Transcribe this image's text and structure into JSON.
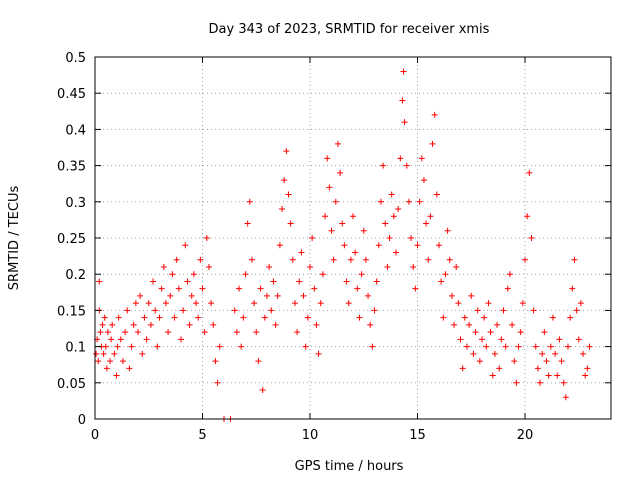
{
  "chart_data": {
    "type": "scatter",
    "title": "Day 343 of 2023, SRMTID for receiver xmis",
    "xlabel": "GPS time / hours",
    "ylabel": "SRMTID / TECUs",
    "xlim": [
      0,
      24
    ],
    "ylim": [
      0,
      0.5
    ],
    "xticks": [
      0,
      5,
      10,
      15,
      20
    ],
    "xtick_labels": [
      "0",
      "5",
      "10",
      "15",
      "20"
    ],
    "yticks": [
      0,
      0.05,
      0.1,
      0.15,
      0.2,
      0.25,
      0.3,
      0.35,
      0.4,
      0.45,
      0.5
    ],
    "ytick_labels": [
      "0",
      "0.05",
      "0.1",
      "0.15",
      "0.2",
      "0.25",
      "0.3",
      "0.35",
      "0.4",
      "0.45",
      "0.5"
    ],
    "grid": true,
    "marker": "+",
    "color": "#ff0000",
    "series": [
      {
        "name": "SRMTID",
        "points": [
          [
            0.05,
            0.09
          ],
          [
            0.1,
            0.11
          ],
          [
            0.15,
            0.08
          ],
          [
            0.2,
            0.19
          ],
          [
            0.2,
            0.15
          ],
          [
            0.25,
            0.12
          ],
          [
            0.3,
            0.1
          ],
          [
            0.35,
            0.13
          ],
          [
            0.4,
            0.09
          ],
          [
            0.45,
            0.14
          ],
          [
            0.5,
            0.1
          ],
          [
            0.55,
            0.07
          ],
          [
            0.6,
            0.12
          ],
          [
            0.7,
            0.08
          ],
          [
            0.75,
            0.11
          ],
          [
            0.8,
            0.13
          ],
          [
            0.9,
            0.09
          ],
          [
            1.0,
            0.06
          ],
          [
            1.05,
            0.1
          ],
          [
            1.1,
            0.14
          ],
          [
            1.2,
            0.11
          ],
          [
            1.3,
            0.08
          ],
          [
            1.4,
            0.12
          ],
          [
            1.5,
            0.15
          ],
          [
            1.6,
            0.07
          ],
          [
            1.7,
            0.1
          ],
          [
            1.8,
            0.13
          ],
          [
            1.9,
            0.16
          ],
          [
            2.0,
            0.12
          ],
          [
            2.1,
            0.17
          ],
          [
            2.2,
            0.09
          ],
          [
            2.3,
            0.14
          ],
          [
            2.4,
            0.11
          ],
          [
            2.5,
            0.16
          ],
          [
            2.6,
            0.13
          ],
          [
            2.7,
            0.19
          ],
          [
            2.8,
            0.15
          ],
          [
            2.9,
            0.1
          ],
          [
            3.0,
            0.14
          ],
          [
            3.1,
            0.18
          ],
          [
            3.2,
            0.21
          ],
          [
            3.3,
            0.16
          ],
          [
            3.4,
            0.12
          ],
          [
            3.5,
            0.17
          ],
          [
            3.6,
            0.2
          ],
          [
            3.7,
            0.14
          ],
          [
            3.8,
            0.22
          ],
          [
            3.9,
            0.18
          ],
          [
            4.0,
            0.11
          ],
          [
            4.1,
            0.15
          ],
          [
            4.2,
            0.24
          ],
          [
            4.3,
            0.19
          ],
          [
            4.4,
            0.13
          ],
          [
            4.5,
            0.17
          ],
          [
            4.6,
            0.2
          ],
          [
            4.7,
            0.16
          ],
          [
            4.8,
            0.14
          ],
          [
            4.9,
            0.22
          ],
          [
            5.0,
            0.18
          ],
          [
            5.1,
            0.12
          ],
          [
            5.2,
            0.25
          ],
          [
            5.3,
            0.21
          ],
          [
            5.4,
            0.16
          ],
          [
            5.5,
            0.13
          ],
          [
            5.6,
            0.08
          ],
          [
            5.7,
            0.05
          ],
          [
            5.8,
            0.1
          ],
          [
            6.0,
            0.0
          ],
          [
            6.3,
            0.0
          ],
          [
            6.5,
            0.15
          ],
          [
            6.6,
            0.12
          ],
          [
            6.7,
            0.18
          ],
          [
            6.8,
            0.1
          ],
          [
            6.9,
            0.14
          ],
          [
            7.0,
            0.2
          ],
          [
            7.1,
            0.27
          ],
          [
            7.2,
            0.3
          ],
          [
            7.3,
            0.22
          ],
          [
            7.4,
            0.16
          ],
          [
            7.5,
            0.12
          ],
          [
            7.6,
            0.08
          ],
          [
            7.7,
            0.18
          ],
          [
            7.8,
            0.04
          ],
          [
            7.9,
            0.14
          ],
          [
            8.0,
            0.17
          ],
          [
            8.1,
            0.21
          ],
          [
            8.2,
            0.15
          ],
          [
            8.3,
            0.19
          ],
          [
            8.4,
            0.13
          ],
          [
            8.5,
            0.17
          ],
          [
            8.6,
            0.24
          ],
          [
            8.7,
            0.29
          ],
          [
            8.8,
            0.33
          ],
          [
            8.9,
            0.37
          ],
          [
            9.0,
            0.31
          ],
          [
            9.1,
            0.27
          ],
          [
            9.2,
            0.22
          ],
          [
            9.3,
            0.16
          ],
          [
            9.4,
            0.12
          ],
          [
            9.5,
            0.19
          ],
          [
            9.6,
            0.23
          ],
          [
            9.7,
            0.17
          ],
          [
            9.8,
            0.1
          ],
          [
            9.9,
            0.14
          ],
          [
            10.0,
            0.21
          ],
          [
            10.1,
            0.25
          ],
          [
            10.2,
            0.18
          ],
          [
            10.3,
            0.13
          ],
          [
            10.4,
            0.09
          ],
          [
            10.5,
            0.16
          ],
          [
            10.6,
            0.2
          ],
          [
            10.7,
            0.28
          ],
          [
            10.8,
            0.36
          ],
          [
            10.9,
            0.32
          ],
          [
            11.0,
            0.26
          ],
          [
            11.1,
            0.22
          ],
          [
            11.2,
            0.3
          ],
          [
            11.3,
            0.38
          ],
          [
            11.4,
            0.34
          ],
          [
            11.5,
            0.27
          ],
          [
            11.6,
            0.24
          ],
          [
            11.7,
            0.19
          ],
          [
            11.8,
            0.16
          ],
          [
            11.9,
            0.22
          ],
          [
            12.0,
            0.28
          ],
          [
            12.1,
            0.23
          ],
          [
            12.2,
            0.18
          ],
          [
            12.3,
            0.14
          ],
          [
            12.4,
            0.2
          ],
          [
            12.5,
            0.26
          ],
          [
            12.6,
            0.22
          ],
          [
            12.7,
            0.17
          ],
          [
            12.8,
            0.13
          ],
          [
            12.9,
            0.1
          ],
          [
            13.0,
            0.15
          ],
          [
            13.1,
            0.19
          ],
          [
            13.2,
            0.24
          ],
          [
            13.3,
            0.3
          ],
          [
            13.4,
            0.35
          ],
          [
            13.5,
            0.27
          ],
          [
            13.6,
            0.21
          ],
          [
            13.7,
            0.25
          ],
          [
            13.8,
            0.31
          ],
          [
            13.9,
            0.28
          ],
          [
            14.0,
            0.23
          ],
          [
            14.1,
            0.29
          ],
          [
            14.2,
            0.36
          ],
          [
            14.3,
            0.44
          ],
          [
            14.35,
            0.48
          ],
          [
            14.4,
            0.41
          ],
          [
            14.5,
            0.35
          ],
          [
            14.6,
            0.3
          ],
          [
            14.7,
            0.25
          ],
          [
            14.8,
            0.21
          ],
          [
            14.9,
            0.18
          ],
          [
            15.0,
            0.24
          ],
          [
            15.1,
            0.3
          ],
          [
            15.2,
            0.36
          ],
          [
            15.3,
            0.33
          ],
          [
            15.4,
            0.27
          ],
          [
            15.5,
            0.22
          ],
          [
            15.6,
            0.28
          ],
          [
            15.7,
            0.38
          ],
          [
            15.8,
            0.42
          ],
          [
            15.9,
            0.31
          ],
          [
            16.0,
            0.24
          ],
          [
            16.1,
            0.19
          ],
          [
            16.2,
            0.14
          ],
          [
            16.3,
            0.2
          ],
          [
            16.4,
            0.26
          ],
          [
            16.5,
            0.22
          ],
          [
            16.6,
            0.17
          ],
          [
            16.7,
            0.13
          ],
          [
            16.8,
            0.21
          ],
          [
            16.9,
            0.16
          ],
          [
            17.0,
            0.11
          ],
          [
            17.1,
            0.07
          ],
          [
            17.2,
            0.14
          ],
          [
            17.3,
            0.1
          ],
          [
            17.4,
            0.13
          ],
          [
            17.5,
            0.17
          ],
          [
            17.6,
            0.09
          ],
          [
            17.7,
            0.12
          ],
          [
            17.8,
            0.15
          ],
          [
            17.9,
            0.08
          ],
          [
            18.0,
            0.11
          ],
          [
            18.1,
            0.14
          ],
          [
            18.2,
            0.1
          ],
          [
            18.3,
            0.16
          ],
          [
            18.4,
            0.12
          ],
          [
            18.5,
            0.06
          ],
          [
            18.6,
            0.09
          ],
          [
            18.7,
            0.13
          ],
          [
            18.8,
            0.07
          ],
          [
            18.9,
            0.11
          ],
          [
            19.0,
            0.15
          ],
          [
            19.1,
            0.1
          ],
          [
            19.2,
            0.18
          ],
          [
            19.3,
            0.2
          ],
          [
            19.4,
            0.13
          ],
          [
            19.5,
            0.08
          ],
          [
            19.6,
            0.05
          ],
          [
            19.7,
            0.1
          ],
          [
            19.8,
            0.12
          ],
          [
            19.9,
            0.16
          ],
          [
            20.0,
            0.22
          ],
          [
            20.1,
            0.28
          ],
          [
            20.2,
            0.34
          ],
          [
            20.3,
            0.25
          ],
          [
            20.4,
            0.15
          ],
          [
            20.5,
            0.1
          ],
          [
            20.6,
            0.07
          ],
          [
            20.7,
            0.05
          ],
          [
            20.8,
            0.09
          ],
          [
            20.9,
            0.12
          ],
          [
            21.0,
            0.08
          ],
          [
            21.1,
            0.06
          ],
          [
            21.2,
            0.1
          ],
          [
            21.3,
            0.14
          ],
          [
            21.4,
            0.09
          ],
          [
            21.5,
            0.06
          ],
          [
            21.6,
            0.11
          ],
          [
            21.7,
            0.08
          ],
          [
            21.8,
            0.05
          ],
          [
            21.9,
            0.03
          ],
          [
            22.0,
            0.1
          ],
          [
            22.1,
            0.14
          ],
          [
            22.2,
            0.18
          ],
          [
            22.3,
            0.22
          ],
          [
            22.4,
            0.15
          ],
          [
            22.5,
            0.11
          ],
          [
            22.6,
            0.16
          ],
          [
            22.7,
            0.09
          ],
          [
            22.8,
            0.06
          ],
          [
            22.9,
            0.07
          ],
          [
            23.0,
            0.1
          ]
        ]
      }
    ]
  }
}
